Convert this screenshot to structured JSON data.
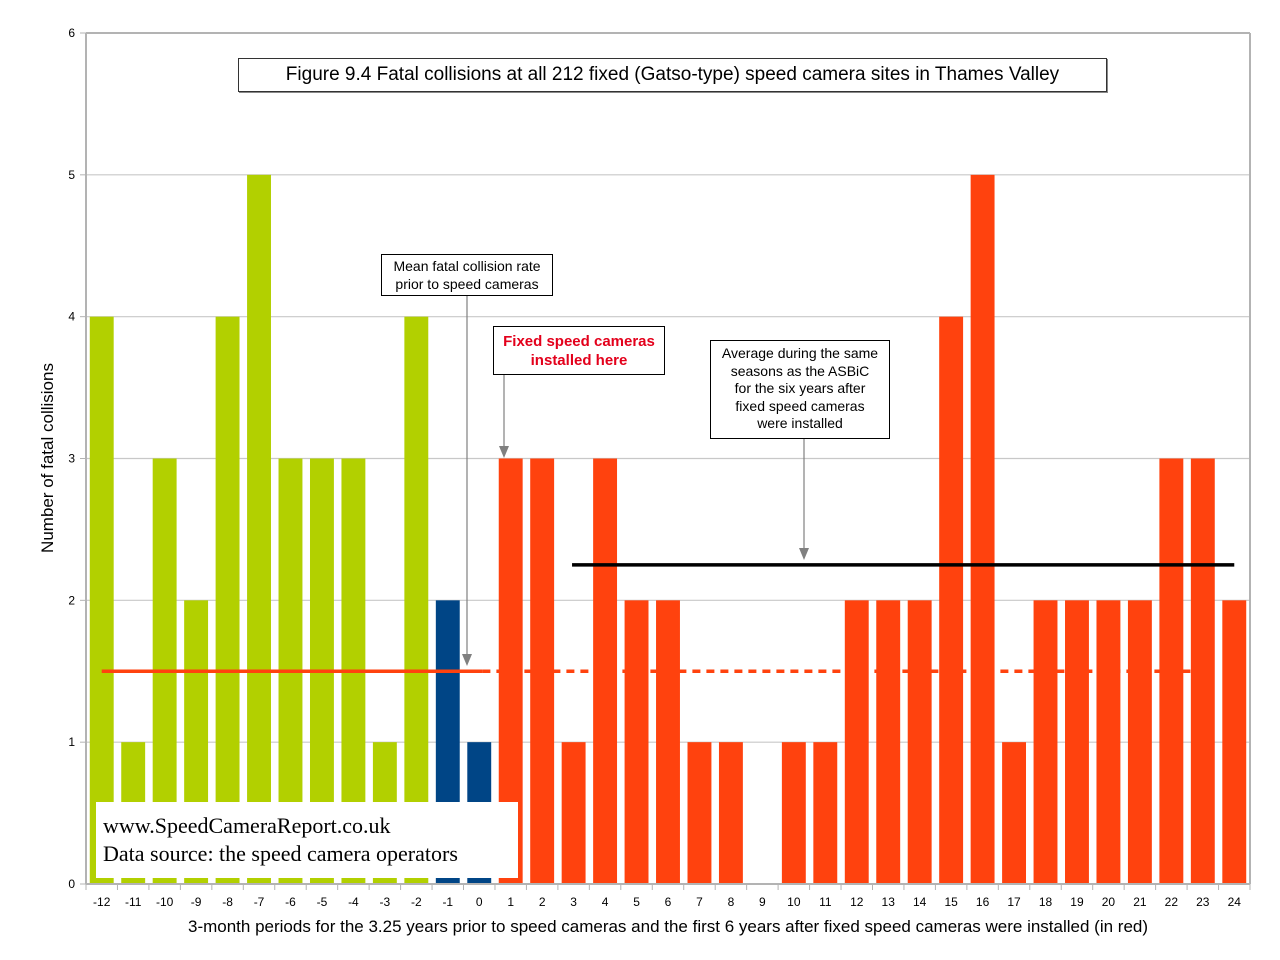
{
  "chart_data": {
    "type": "bar",
    "title": "Figure 9.4 Fatal collisions at all 212 fixed (Gatso-type) speed camera sites in Thames Valley",
    "xlabel": "3-month periods for the 3.25 years prior to speed cameras and the first 6 years after fixed speed cameras were installed (in red)",
    "ylabel": "Number of fatal collisions",
    "ylim": [
      0,
      6
    ],
    "yticks": [
      "0",
      "1",
      "2",
      "3",
      "4",
      "5",
      "6"
    ],
    "grid": true,
    "categories": [
      "-12",
      "-11",
      "-10",
      "-9",
      "-8",
      "-7",
      "-6",
      "-5",
      "-4",
      "-3",
      "-2",
      "-1",
      "0",
      "1",
      "2",
      "3",
      "4",
      "5",
      "6",
      "7",
      "8",
      "9",
      "10",
      "11",
      "12",
      "13",
      "14",
      "15",
      "16",
      "17",
      "18",
      "19",
      "20",
      "21",
      "22",
      "23",
      "24"
    ],
    "values": [
      4,
      1,
      3,
      2,
      4,
      5,
      3,
      3,
      3,
      1,
      4,
      2,
      1,
      3,
      3,
      1,
      3,
      2,
      2,
      1,
      1,
      0,
      1,
      1,
      2,
      2,
      2,
      4,
      5,
      1,
      2,
      2,
      2,
      2,
      3,
      3,
      2
    ],
    "groups": [
      {
        "name": "before",
        "from": "-12",
        "to": "-2",
        "color": "#b2d000"
      },
      {
        "name": "transition",
        "from": "-1",
        "to": "0",
        "color": "#004586"
      },
      {
        "name": "after",
        "from": "1",
        "to": "24",
        "color": "#ff420e"
      }
    ],
    "reference_lines": [
      {
        "name": "mean-before",
        "value": 1.5,
        "from": "-12",
        "to": "23",
        "solid_until": "0",
        "color": "#ff420e"
      },
      {
        "name": "average-after",
        "value": 2.25,
        "from": "3",
        "to": "24",
        "color": "#000000"
      }
    ],
    "annotations": {
      "mean": [
        "Mean fatal collision rate",
        "prior to speed cameras"
      ],
      "installed": [
        "Fixed speed cameras",
        "installed here"
      ],
      "average": [
        "Average during the same",
        "seasons as the ASBiC",
        "for the six years after",
        "fixed speed cameras",
        "were installed"
      ]
    }
  },
  "source": {
    "website": "www.SpeedCameraReport.co.uk",
    "data_source": "Data source: the speed camera operators"
  }
}
